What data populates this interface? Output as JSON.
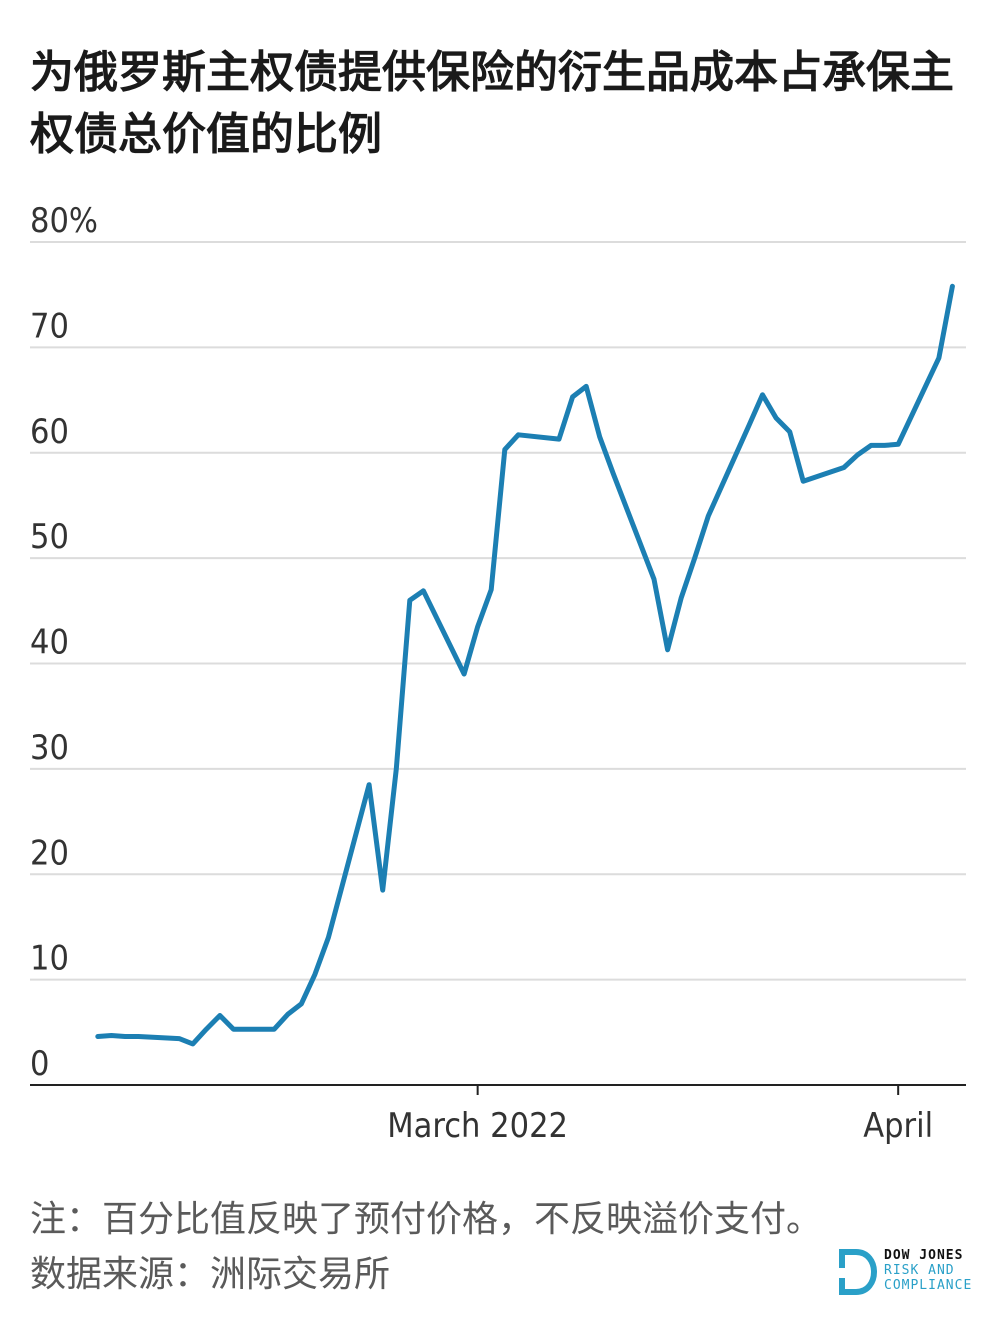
{
  "title": "为俄罗斯主权债提供保险的衍生品成本占承保主权债总价值的比例",
  "note": "注：百分比值反映了预付价格，不反映溢价支付。",
  "source": "数据来源：洲际交易所",
  "logo": {
    "line1": "DOW JONES",
    "line2": "RISK AND",
    "line3": "COMPLIANCE",
    "accent": "#2aa0c8"
  },
  "chart_data": {
    "type": "line",
    "title": "为俄罗斯主权债提供保险的衍生品成本占承保主权债总价值的比例",
    "xlabel": "",
    "ylabel": "",
    "ylim": [
      0,
      80
    ],
    "yticks": [
      0,
      10,
      20,
      30,
      40,
      50,
      60,
      70,
      80
    ],
    "ytick_labels": [
      "0",
      "10",
      "20",
      "30",
      "40",
      "50",
      "60",
      "70",
      "80%"
    ],
    "xticks": [
      {
        "x": "2022-03-01",
        "label": "March 2022"
      },
      {
        "x": "2022-04-01",
        "label": "April"
      }
    ],
    "xlim": [
      "2022-01-27",
      "2022-04-06"
    ],
    "grid": "horizontal",
    "line_color": "#1c7fb3",
    "series": [
      {
        "name": "",
        "x": [
          "2022-02-01",
          "2022-02-02",
          "2022-02-03",
          "2022-02-04",
          "2022-02-07",
          "2022-02-08",
          "2022-02-09",
          "2022-02-10",
          "2022-02-11",
          "2022-02-14",
          "2022-02-15",
          "2022-02-16",
          "2022-02-17",
          "2022-02-18",
          "2022-02-21",
          "2022-02-22",
          "2022-02-23",
          "2022-02-24",
          "2022-02-25",
          "2022-02-28",
          "2022-03-01",
          "2022-03-02",
          "2022-03-03",
          "2022-03-04",
          "2022-03-07",
          "2022-03-08",
          "2022-03-09",
          "2022-03-10",
          "2022-03-11",
          "2022-03-14",
          "2022-03-15",
          "2022-03-16",
          "2022-03-17",
          "2022-03-18",
          "2022-03-21",
          "2022-03-22",
          "2022-03-23",
          "2022-03-24",
          "2022-03-25",
          "2022-03-28",
          "2022-03-29",
          "2022-03-30",
          "2022-03-31",
          "2022-04-01",
          "2022-04-04",
          "2022-04-05"
        ],
        "values": [
          4.6,
          4.7,
          4.6,
          4.6,
          4.4,
          3.9,
          5.3,
          6.6,
          5.3,
          5.3,
          6.7,
          7.7,
          10.5,
          14.0,
          28.5,
          18.5,
          30.0,
          46.0,
          46.9,
          39.0,
          43.5,
          47.0,
          60.3,
          61.7,
          61.3,
          65.3,
          66.3,
          61.5,
          58.0,
          48.0,
          41.3,
          46.2,
          50.0,
          54.0,
          62.6,
          65.5,
          63.3,
          62.0,
          57.3,
          58.6,
          59.8,
          60.7,
          60.7,
          60.8,
          69.0,
          75.8
        ]
      }
    ]
  }
}
